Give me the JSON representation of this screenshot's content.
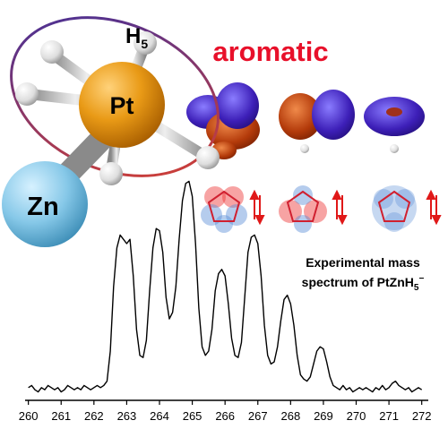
{
  "chart_data": {
    "type": "line",
    "color": "#000000",
    "x": [
      260.0,
      260.1,
      260.2,
      260.3,
      260.4,
      260.5,
      260.6,
      260.7,
      260.8,
      260.9,
      261.0,
      261.1,
      261.2,
      261.3,
      261.4,
      261.5,
      261.6,
      261.7,
      261.8,
      261.9,
      262.0,
      262.1,
      262.2,
      262.3,
      262.4,
      262.5,
      262.6,
      262.7,
      262.8,
      262.9,
      263.0,
      263.1,
      263.2,
      263.3,
      263.4,
      263.5,
      263.6,
      263.7,
      263.8,
      263.9,
      264.0,
      264.1,
      264.2,
      264.3,
      264.4,
      264.5,
      264.6,
      264.7,
      264.8,
      264.9,
      265.0,
      265.1,
      265.2,
      265.3,
      265.4,
      265.5,
      265.6,
      265.7,
      265.8,
      265.9,
      266.0,
      266.1,
      266.2,
      266.3,
      266.4,
      266.5,
      266.6,
      266.7,
      266.8,
      266.9,
      267.0,
      267.1,
      267.2,
      267.3,
      267.4,
      267.5,
      267.6,
      267.7,
      267.8,
      267.9,
      268.0,
      268.1,
      268.2,
      268.3,
      268.4,
      268.5,
      268.6,
      268.7,
      268.8,
      268.9,
      269.0,
      269.1,
      269.2,
      269.3,
      269.4,
      269.5,
      269.6,
      269.7,
      269.8,
      269.9,
      270.0,
      270.1,
      270.2,
      270.3,
      270.4,
      270.5,
      270.6,
      270.7,
      270.8,
      270.9,
      271.0,
      271.1,
      271.2,
      271.3,
      271.4,
      271.5,
      271.6,
      271.7,
      271.8,
      271.9,
      272.0
    ],
    "values": [
      3,
      4,
      2,
      1,
      3,
      2,
      4,
      3,
      2,
      3,
      1,
      2,
      4,
      3,
      2,
      3,
      2,
      4,
      3,
      2,
      3,
      4,
      3,
      4,
      6,
      20,
      50,
      68,
      74,
      72,
      70,
      72,
      55,
      30,
      18,
      17,
      25,
      48,
      68,
      77,
      76,
      66,
      45,
      35,
      38,
      50,
      72,
      90,
      98,
      99,
      92,
      70,
      40,
      22,
      18,
      20,
      30,
      48,
      56,
      58,
      55,
      42,
      26,
      18,
      17,
      24,
      45,
      66,
      73,
      74,
      70,
      55,
      32,
      18,
      14,
      15,
      22,
      34,
      44,
      46,
      42,
      32,
      18,
      9,
      7,
      6,
      8,
      14,
      20,
      22,
      21,
      15,
      8,
      4,
      3,
      2,
      4,
      2,
      3,
      1,
      2,
      3,
      2,
      3,
      2,
      1,
      3,
      2,
      4,
      2,
      3,
      5,
      6,
      4,
      3,
      2,
      3,
      1,
      2,
      3,
      2
    ],
    "xlim": [
      259.9,
      272.2
    ],
    "xticks": [
      260,
      261,
      262,
      263,
      264,
      265,
      266,
      267,
      268,
      269,
      270,
      271,
      272
    ],
    "ylim": [
      0,
      100
    ],
    "annotations": {
      "aromatic": "aromatic",
      "h5": [
        "H",
        "5"
      ],
      "pt": "Pt",
      "zn": "Zn",
      "caption": [
        "Experimental mass",
        "spectrum of PtZnH",
        "5",
        "−"
      ]
    }
  }
}
